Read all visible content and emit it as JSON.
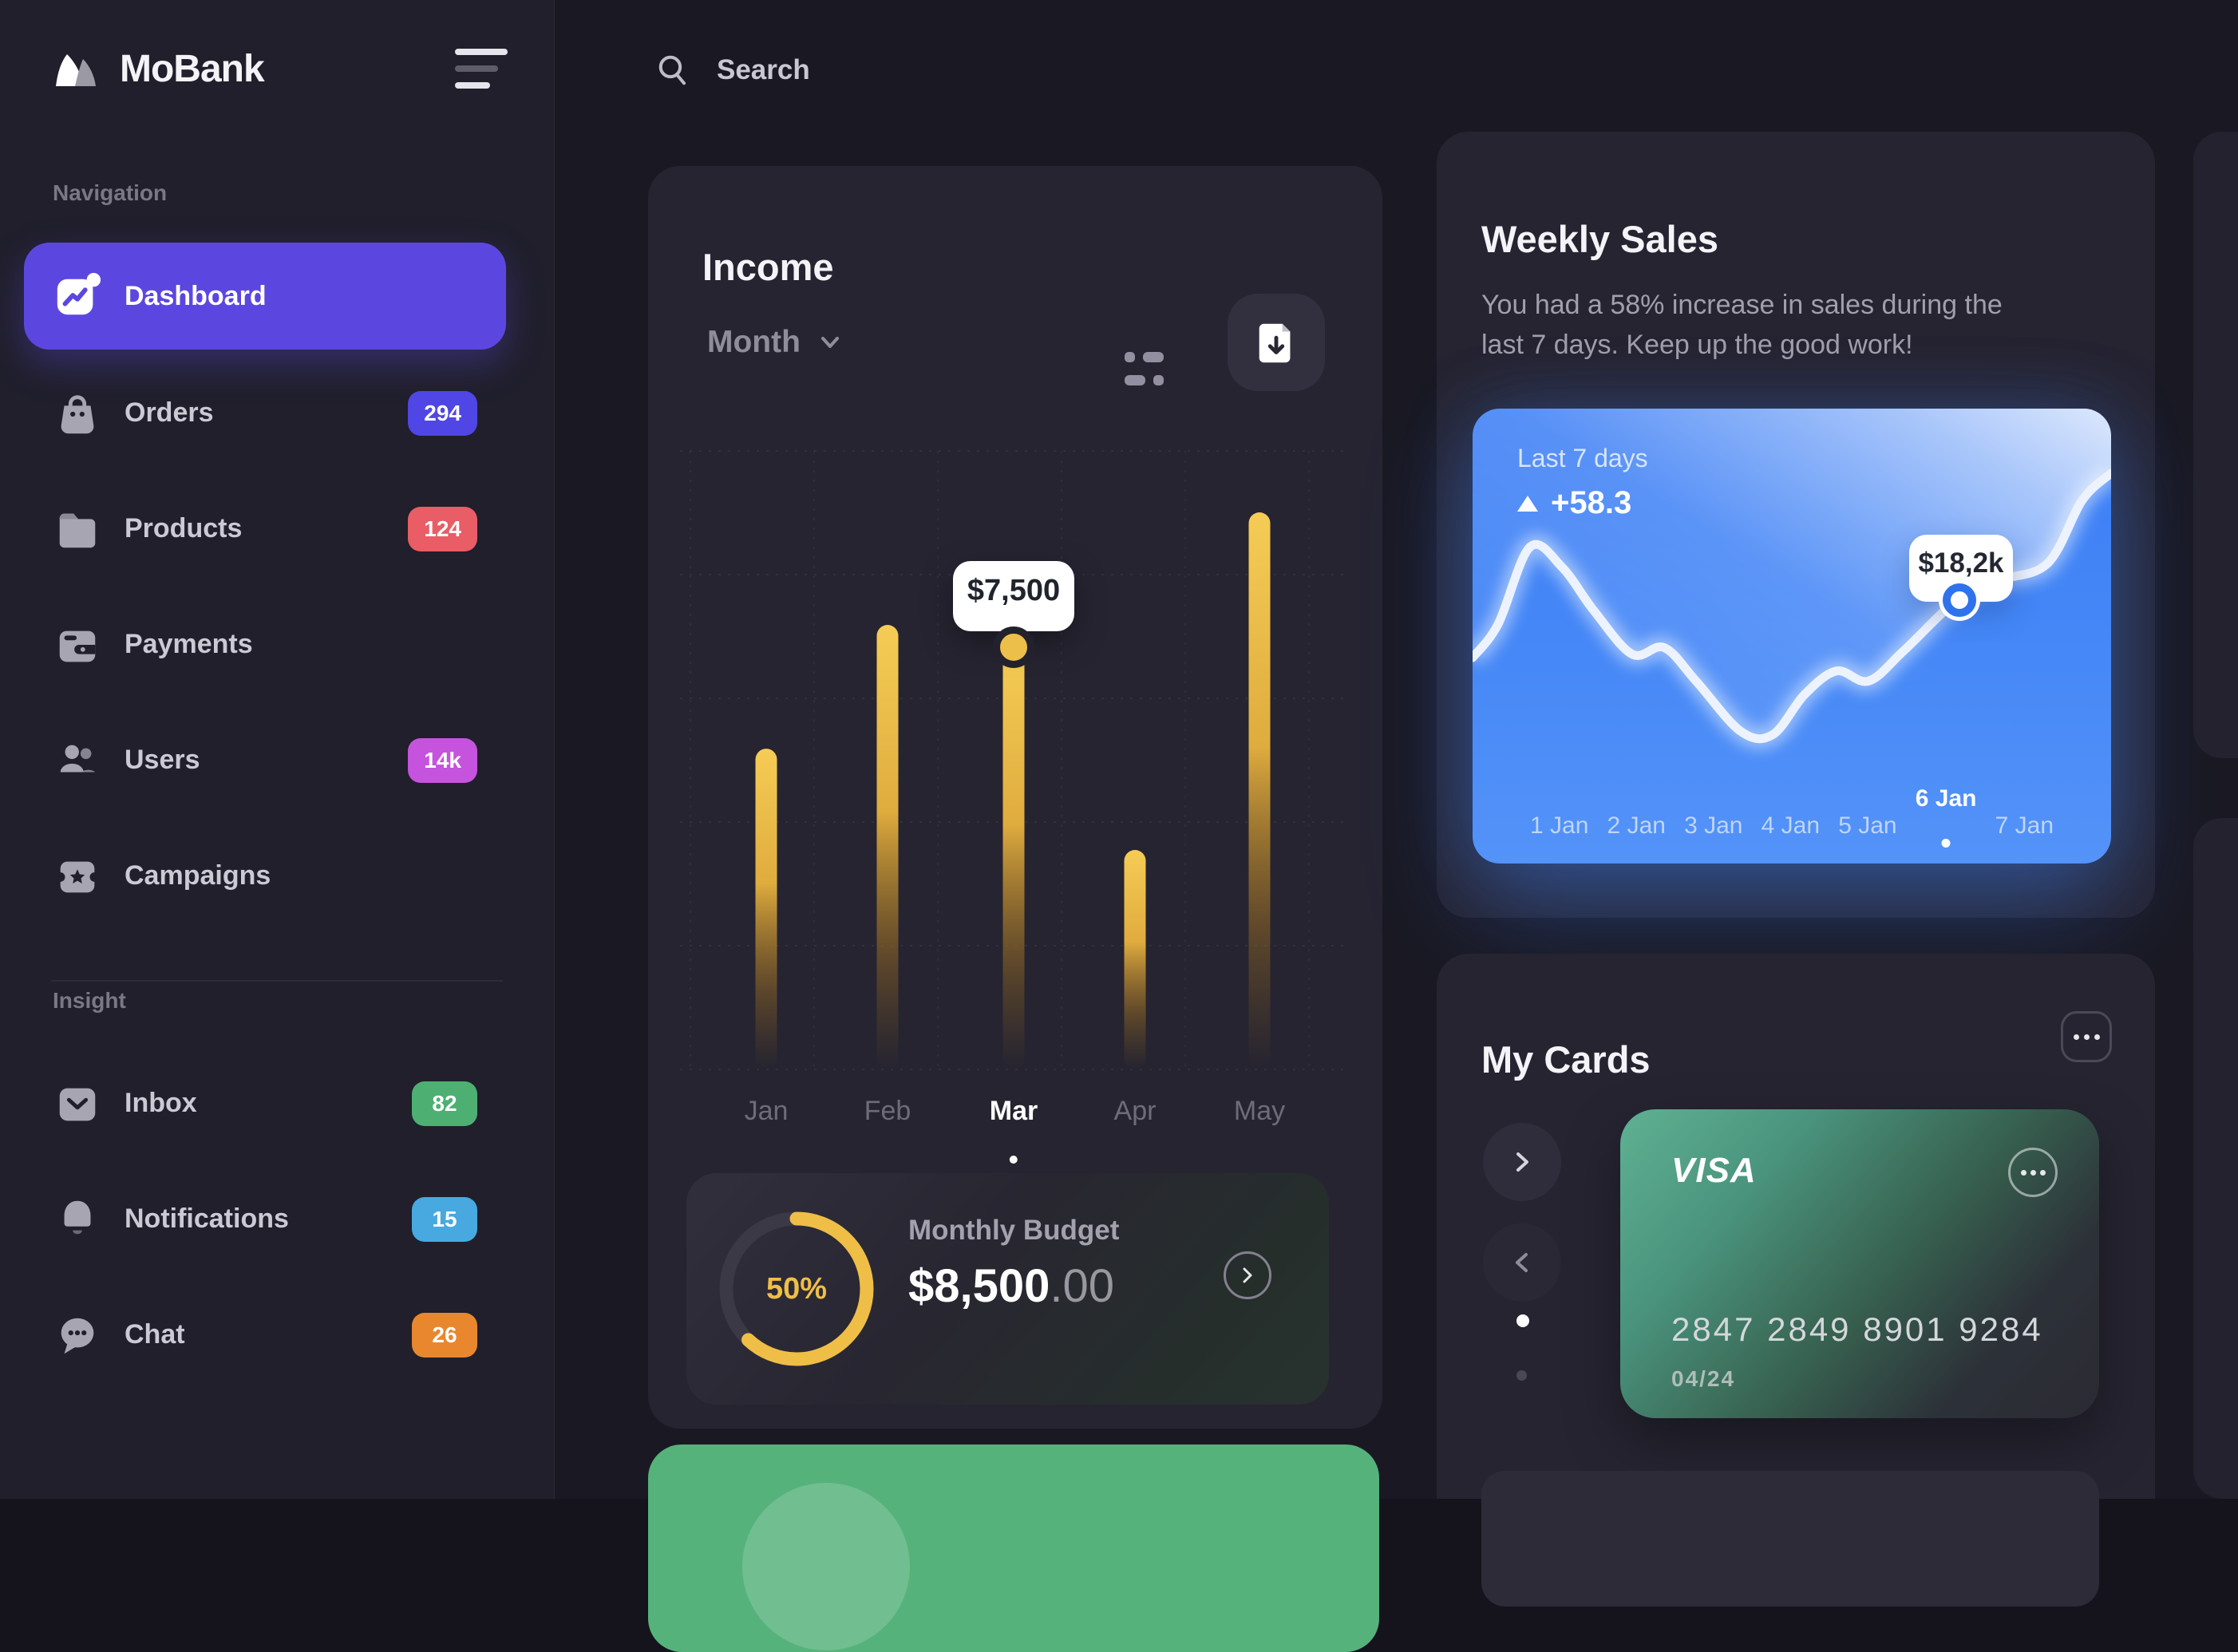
{
  "brand": {
    "name": "MoBank"
  },
  "search": {
    "placeholder": "Search"
  },
  "sidebar": {
    "sections": [
      {
        "label": "Navigation",
        "items": [
          {
            "id": "dashboard",
            "label": "Dashboard",
            "icon": "dashboard-icon",
            "active": true
          },
          {
            "id": "orders",
            "label": "Orders",
            "icon": "bag-icon",
            "badge": "294",
            "badge_color": "#4F46E5"
          },
          {
            "id": "products",
            "label": "Products",
            "icon": "folder-icon",
            "badge": "124",
            "badge_color": "#E85D66"
          },
          {
            "id": "payments",
            "label": "Payments",
            "icon": "wallet-icon"
          },
          {
            "id": "users",
            "label": "Users",
            "icon": "users-icon",
            "badge": "14k",
            "badge_color": "#C653DD"
          },
          {
            "id": "campaigns",
            "label": "Campaigns",
            "icon": "ticket-icon"
          }
        ]
      },
      {
        "label": "Insight",
        "items": [
          {
            "id": "inbox",
            "label": "Inbox",
            "icon": "inbox-icon",
            "badge": "82",
            "badge_color": "#4DB072"
          },
          {
            "id": "notifications",
            "label": "Notifications",
            "icon": "bell-icon",
            "badge": "15",
            "badge_color": "#47A9E0"
          },
          {
            "id": "chat",
            "label": "Chat",
            "icon": "chat-icon",
            "badge": "26",
            "badge_color": "#E8872E"
          }
        ]
      }
    ]
  },
  "income": {
    "title": "Income",
    "period": "Month",
    "tooltip": "$7,500",
    "budget": {
      "label": "Monthly Budget",
      "percent": "50%",
      "amount": "$8,500",
      "cents": ".00"
    }
  },
  "weekly": {
    "title": "Weekly Sales",
    "description": "You had a 58% increase in sales during the last 7 days. Keep up the good work!",
    "panel_period": "Last 7 days",
    "panel_delta": "+58.3",
    "tooltip": "$18,2k"
  },
  "my_cards": {
    "title": "My Cards",
    "card": {
      "network": "VISA",
      "number": "2847 2849 8901 9284",
      "expiry": "04/24"
    }
  },
  "chart_data": [
    {
      "type": "bar",
      "title": "Income",
      "categories": [
        "Jan",
        "Feb",
        "Mar",
        "Apr",
        "May"
      ],
      "values": [
        5700,
        7900,
        7500,
        3900,
        9900
      ],
      "active_category": "Mar",
      "labeled_point": {
        "category": "Mar",
        "label": "$7,500",
        "value": 7500
      },
      "xlabel": "",
      "ylabel": "",
      "ylim": [
        0,
        10000
      ],
      "grid": "dashed",
      "bar_color": "#F2C94C"
    },
    {
      "type": "area",
      "title": "Weekly Sales - Last 7 days",
      "x": [
        "1 Jan",
        "2 Jan",
        "3 Jan",
        "4 Jan",
        "5 Jan",
        "6 Jan",
        "7 Jan"
      ],
      "values_k": [
        12.5,
        10.5,
        6.0,
        7.5,
        9.5,
        18.2,
        24.0
      ],
      "highlight": {
        "x": "6 Jan",
        "label": "$18,2k",
        "value_k": 18.2
      },
      "delta": "+58.3",
      "line_color": "#EDF3FE",
      "curve_points": [
        [
          0,
          0.6
        ],
        [
          0.04,
          0.5
        ],
        [
          0.09,
          0.27
        ],
        [
          0.14,
          0.33
        ],
        [
          0.19,
          0.46
        ],
        [
          0.25,
          0.59
        ],
        [
          0.3,
          0.57
        ],
        [
          0.35,
          0.67
        ],
        [
          0.42,
          0.82
        ],
        [
          0.47,
          0.83
        ],
        [
          0.52,
          0.71
        ],
        [
          0.57,
          0.64
        ],
        [
          0.62,
          0.67
        ],
        [
          0.675,
          0.58
        ],
        [
          0.763,
          0.42
        ],
        [
          0.82,
          0.37
        ],
        [
          0.9,
          0.32
        ],
        [
          0.955,
          0.13
        ],
        [
          1,
          0.05
        ]
      ]
    }
  ]
}
